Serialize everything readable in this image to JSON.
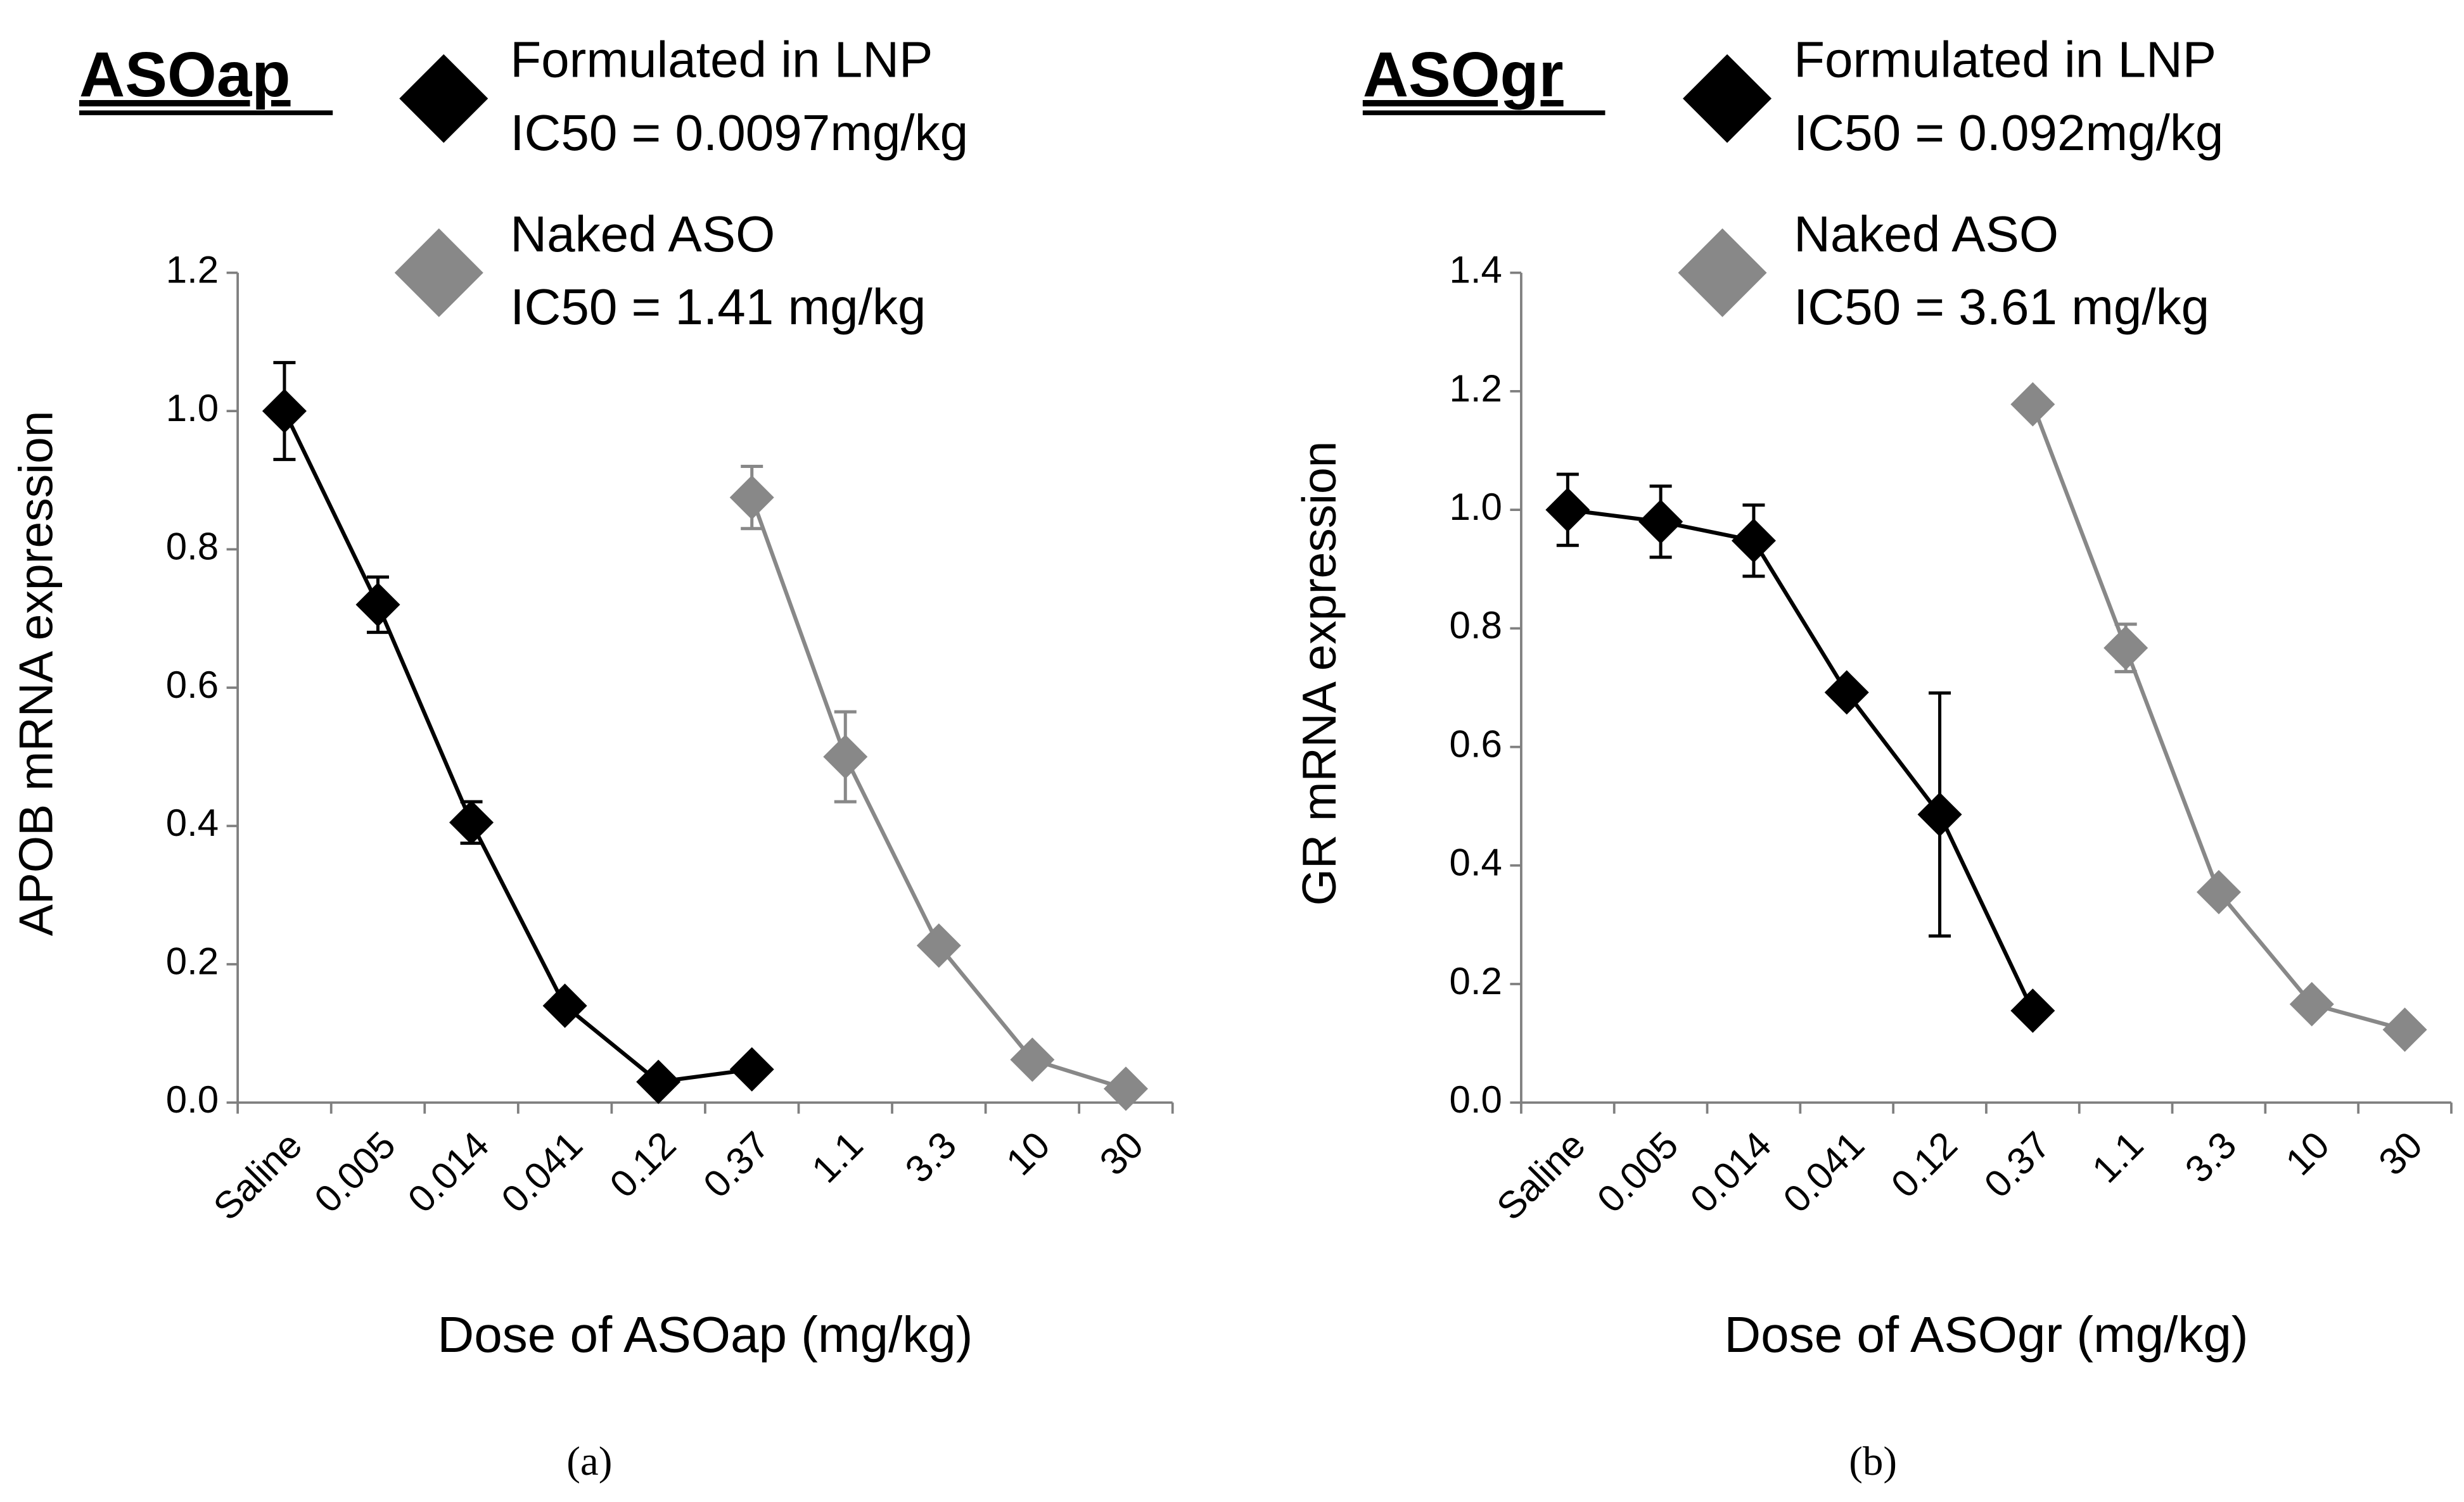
{
  "chart_data": [
    {
      "type": "line",
      "title": "ASOap",
      "caption": "(a)",
      "x_label": "Dose of ASOap (mg/kg)",
      "y_label": "APOB mRNA expression",
      "categories": [
        "Saline",
        "0.005",
        "0.014",
        "0.041",
        "0.12",
        "0.37",
        "1.1",
        "3.3",
        "10",
        "30"
      ],
      "series": [
        {
          "name": "Formulated in LNP",
          "ic50_label": "IC50 = 0.0097mg/kg",
          "color": "#000000",
          "values": [
            1.0,
            0.72,
            0.405,
            0.14,
            0.03,
            0.048,
            null,
            null,
            null,
            null
          ],
          "errors": [
            0.07,
            0.04,
            0.03,
            null,
            null,
            null,
            null,
            null,
            null,
            null
          ]
        },
        {
          "name": "Naked ASO",
          "ic50_label": "IC50 = 1.41 mg/kg",
          "color": "#888888",
          "values": [
            null,
            null,
            null,
            null,
            null,
            0.875,
            0.5,
            0.227,
            0.062,
            0.02
          ],
          "errors": [
            null,
            null,
            null,
            null,
            null,
            0.045,
            0.065,
            null,
            null,
            null
          ]
        }
      ],
      "ylim": [
        0,
        1.2
      ],
      "yticks": [
        {
          "value": 0,
          "label": "0.0"
        },
        0.2,
        0.4,
        0.6,
        0.8,
        {
          "value": 1,
          "label": "1.0"
        },
        1.2
      ]
    },
    {
      "type": "line",
      "title": "ASOgr",
      "caption": "(b)",
      "x_label": "Dose of ASOgr (mg/kg)",
      "y_label": "GR mRNA expression",
      "categories": [
        "Saline",
        "0.005",
        "0.014",
        "0.041",
        "0.12",
        "0.37",
        "1.1",
        "3.3",
        "10",
        "30"
      ],
      "series": [
        {
          "name": "Formulated in LNP",
          "ic50_label": "IC50 = 0.092mg/kg",
          "color": "#000000",
          "values": [
            1.0,
            0.98,
            0.948,
            0.692,
            0.486,
            0.155,
            null,
            null,
            null,
            null
          ],
          "errors": [
            0.06,
            0.06,
            0.06,
            null,
            0.205,
            null,
            null,
            null,
            null,
            null
          ]
        },
        {
          "name": "Naked ASO",
          "ic50_label": "IC50 = 3.61 mg/kg",
          "color": "#888888",
          "values": [
            null,
            null,
            null,
            null,
            null,
            1.178,
            0.767,
            0.355,
            0.166,
            0.123
          ],
          "errors": [
            null,
            null,
            null,
            null,
            null,
            null,
            0.04,
            null,
            null,
            null
          ]
        }
      ],
      "ylim": [
        0,
        1.4
      ],
      "yticks": [
        {
          "value": 0,
          "label": "0.0"
        },
        0.2,
        0.4,
        0.6,
        0.8,
        {
          "value": 1,
          "label": "1.0"
        },
        1.2,
        1.4
      ]
    }
  ]
}
